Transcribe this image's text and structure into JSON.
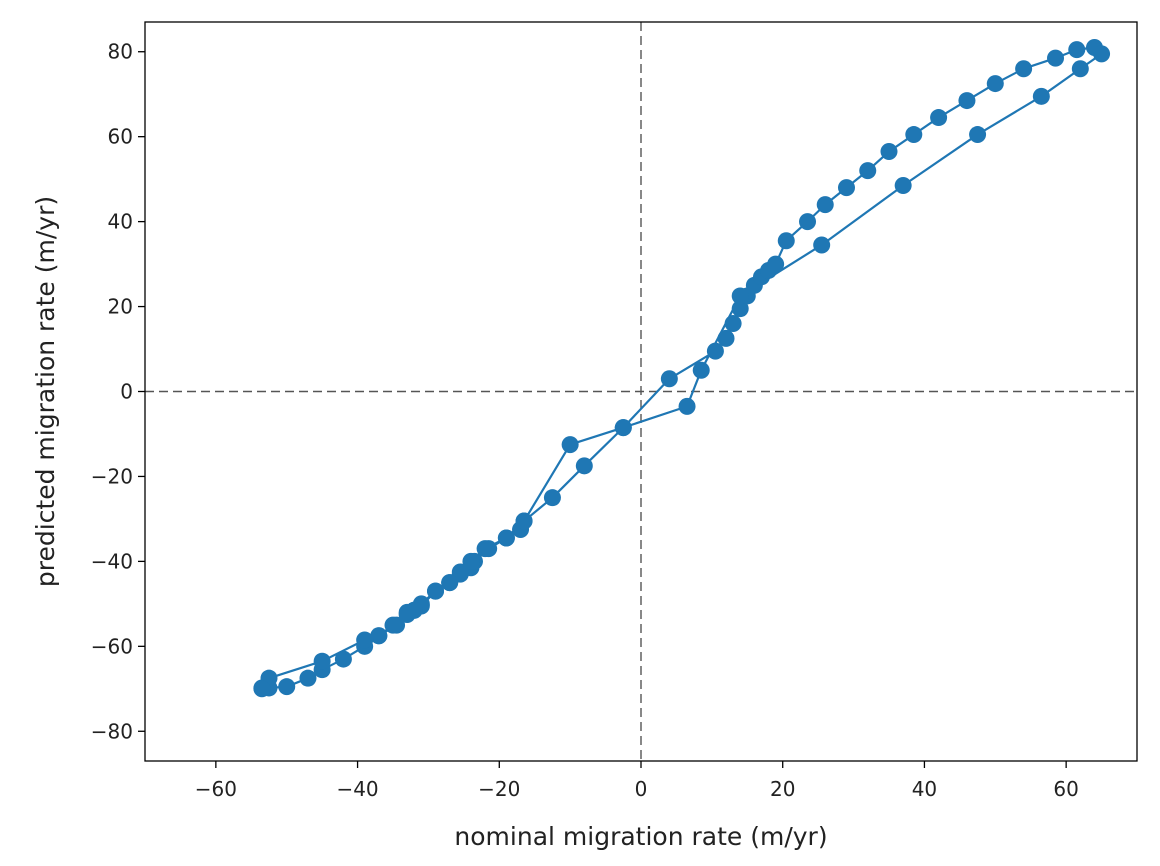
{
  "chart_data": {
    "type": "line",
    "title": "",
    "xlabel": "nominal migration rate (m/yr)",
    "ylabel": "predicted migration rate (m/yr)",
    "xlim": [
      -70,
      70
    ],
    "ylim": [
      -87,
      87
    ],
    "xticks": [
      -60,
      -40,
      -20,
      0,
      20,
      40,
      60
    ],
    "yticks": [
      -80,
      -60,
      -40,
      -20,
      0,
      20,
      40,
      60,
      80
    ],
    "xtick_labels": [
      "−60",
      "−40",
      "−20",
      "0",
      "20",
      "40",
      "60"
    ],
    "ytick_labels": [
      "−80",
      "−60",
      "−40",
      "−20",
      "0",
      "20",
      "40",
      "60",
      "80"
    ],
    "grid": false,
    "reference_lines": [
      {
        "orientation": "vertical",
        "value": 0,
        "style": "dashed"
      },
      {
        "orientation": "horizontal",
        "value": 0,
        "style": "dashed"
      }
    ],
    "series_color": "#1f77b4",
    "series": [
      {
        "marker": "circle",
        "points": [
          [
            -53.5,
            -69.8
          ],
          [
            -52.5,
            -69.8
          ],
          [
            -50,
            -69.5
          ],
          [
            -47,
            -67.5
          ],
          [
            -45,
            -65.5
          ],
          [
            -42,
            -63
          ],
          [
            -39,
            -60
          ],
          [
            -37,
            -57.5
          ],
          [
            -34.5,
            -55
          ],
          [
            -33,
            -52.5
          ],
          [
            -32,
            -51.5
          ],
          [
            -31,
            -50.5
          ],
          [
            -29,
            -47
          ],
          [
            -27,
            -45
          ],
          [
            -25.5,
            -43
          ],
          [
            -24,
            -41.5
          ],
          [
            -23.5,
            -40
          ],
          [
            -21.5,
            -37
          ],
          [
            -19,
            -34.5
          ],
          [
            -17,
            -32.5
          ],
          [
            -16.5,
            -30.5
          ],
          [
            -12.5,
            -25
          ],
          [
            -8,
            -17.5
          ],
          [
            -2.5,
            -8.5
          ],
          [
            4,
            3
          ],
          [
            10.5,
            9.5
          ],
          [
            12,
            12.5
          ],
          [
            13,
            16
          ],
          [
            14,
            19.5
          ],
          [
            15,
            22.5
          ],
          [
            16,
            25
          ],
          [
            17,
            27
          ],
          [
            18,
            28.5
          ],
          [
            19,
            30
          ],
          [
            20.5,
            35.5
          ],
          [
            23.5,
            40
          ],
          [
            26,
            44
          ],
          [
            29,
            48
          ],
          [
            32,
            52
          ],
          [
            35,
            56.5
          ],
          [
            38.5,
            60.5
          ],
          [
            42,
            64.5
          ],
          [
            46,
            68.5
          ],
          [
            50,
            72.5
          ],
          [
            54,
            76
          ],
          [
            58.5,
            78.5
          ],
          [
            61.5,
            80.5
          ],
          [
            64,
            81
          ],
          [
            65,
            79.5
          ],
          [
            62,
            76
          ],
          [
            56.5,
            69.5
          ],
          [
            47.5,
            60.5
          ],
          [
            37,
            48.5
          ],
          [
            25.5,
            34.5
          ],
          [
            14,
            22.5
          ],
          [
            8.5,
            5
          ],
          [
            6.5,
            -3.5
          ],
          [
            -2.5,
            -8.5
          ],
          [
            -10,
            -12.5
          ],
          [
            -16.5,
            -30.5
          ],
          [
            -19,
            -34.5
          ],
          [
            -22,
            -37
          ],
          [
            -24,
            -40
          ],
          [
            -25.5,
            -42.5
          ],
          [
            -27,
            -45
          ],
          [
            -29,
            -47
          ],
          [
            -31,
            -50
          ],
          [
            -32,
            -51.5
          ],
          [
            -33,
            -52
          ],
          [
            -35,
            -55
          ],
          [
            -37,
            -57.5
          ],
          [
            -39,
            -58.5
          ],
          [
            -45,
            -63.5
          ],
          [
            -52.5,
            -67.5
          ],
          [
            -53.5,
            -70
          ]
        ]
      }
    ]
  }
}
